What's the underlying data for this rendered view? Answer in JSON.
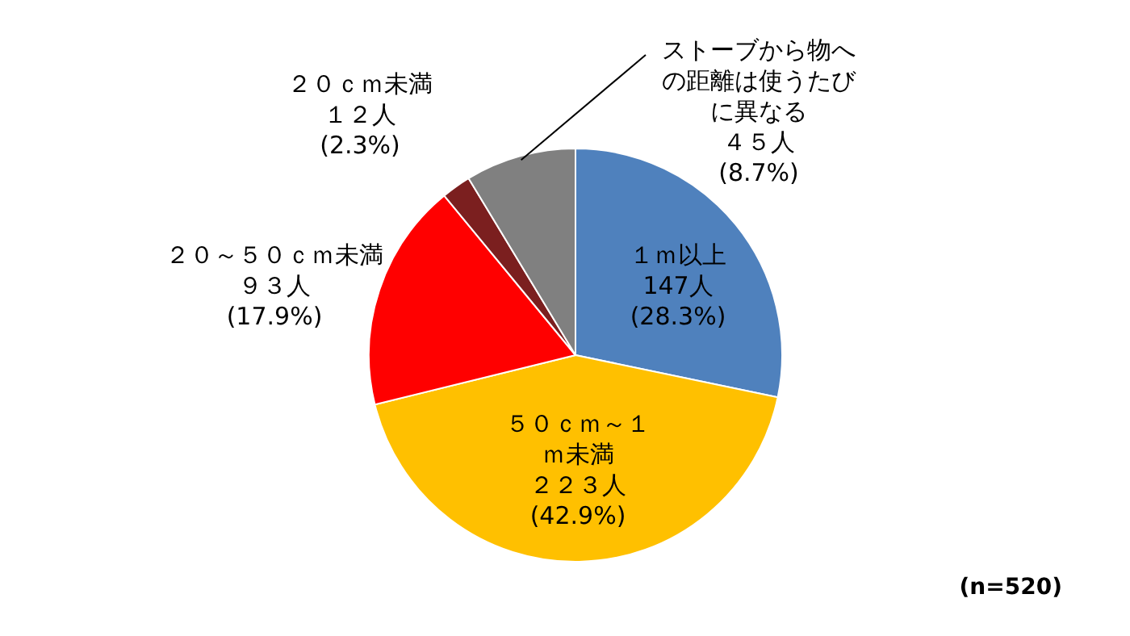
{
  "chart_data": {
    "type": "pie",
    "categories": [
      "１ｍ以上",
      "５０ｃｍ～１ｍ未満",
      "２０～５０ｃｍ未満",
      "２０ｃｍ未満",
      "ストーブから物への距離は使うたびに異なる"
    ],
    "values": [
      147,
      223,
      93,
      12,
      45
    ],
    "value_labels": [
      "147人\n(28.3%)",
      "２２３人\n(42.9%)",
      "９３人\n(17.9%)",
      "１２人\n(2.3%)",
      "４５人\n(8.7%)"
    ],
    "colors": [
      "#4f81bd",
      "#ffc000",
      "#ff0000",
      "#7b1f1f",
      "#808080"
    ],
    "annotations": [
      "(n=520)"
    ],
    "legend": false
  }
}
